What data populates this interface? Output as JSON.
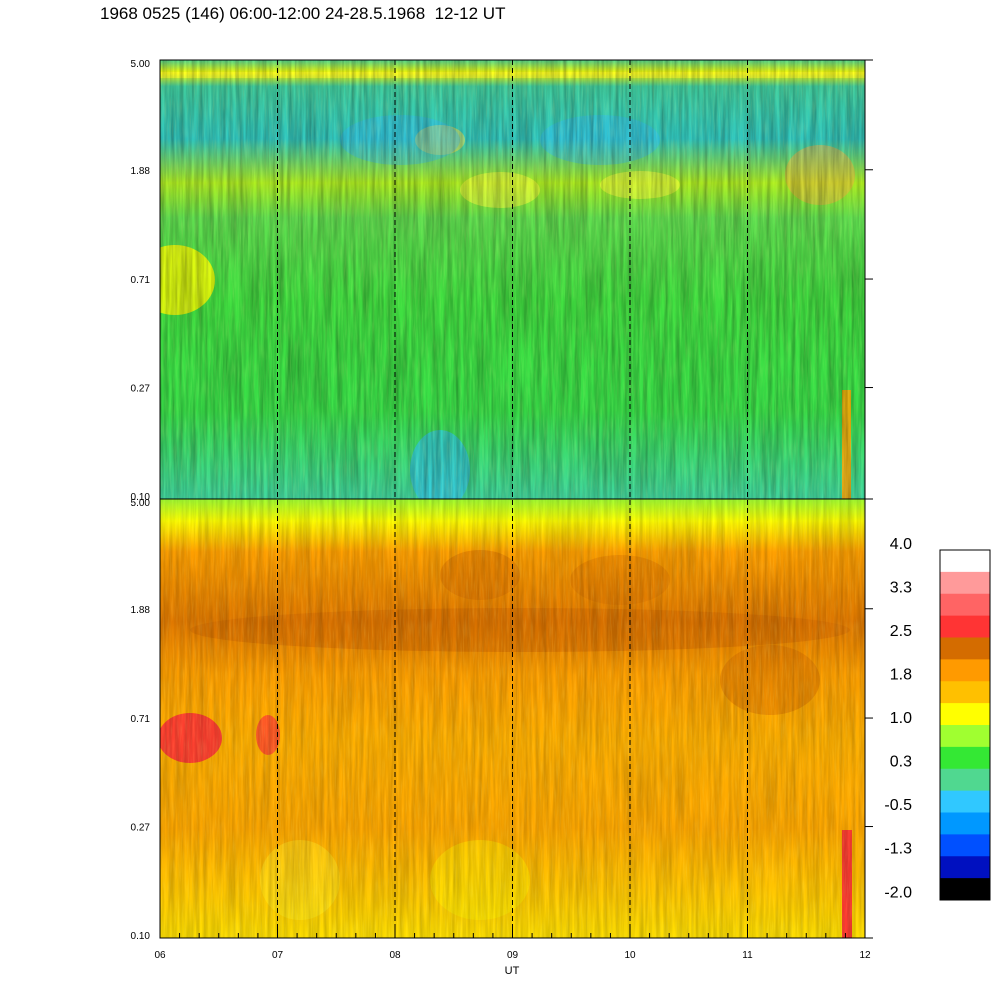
{
  "title": "1968 0525 (146) 06:00-12:00 24-28.5.1968  12-12 UT",
  "chart_data": {
    "type": "heatmap",
    "xlabel": "UT",
    "x_ticks": [
      "06",
      "07",
      "08",
      "09",
      "10",
      "11",
      "12"
    ],
    "x_range": [
      6,
      12
    ],
    "dashed_lines_at": [
      7,
      8,
      9,
      10,
      11
    ],
    "panels": [
      {
        "id": "upper",
        "y_ticks": [
          "5.00",
          "1.88",
          "0.71",
          "0.27",
          "0.10"
        ],
        "y_range": [
          0.1,
          5.0
        ],
        "y_scale": "log",
        "dominant_level_range": [
          -0.5,
          1.0
        ]
      },
      {
        "id": "lower",
        "y_ticks": [
          "5.00",
          "1.88",
          "0.71",
          "0.27",
          "0.10"
        ],
        "y_range": [
          0.1,
          5.0
        ],
        "y_scale": "log",
        "dominant_level_range": [
          1.0,
          2.5
        ]
      }
    ],
    "colorbar": {
      "labels": [
        "4.0",
        "3.3",
        "2.5",
        "1.8",
        "1.0",
        "0.3",
        "-0.5",
        "-1.3",
        "-2.0"
      ],
      "colors": [
        "#ffffff",
        "#ff9a9a",
        "#ff6464",
        "#ff3434",
        "#d46c00",
        "#ff9a00",
        "#ffc000",
        "#ffff00",
        "#a0ff30",
        "#34e834",
        "#50d890",
        "#30c8ff",
        "#0098ff",
        "#0050ff",
        "#0010c0",
        "#000000"
      ]
    }
  }
}
